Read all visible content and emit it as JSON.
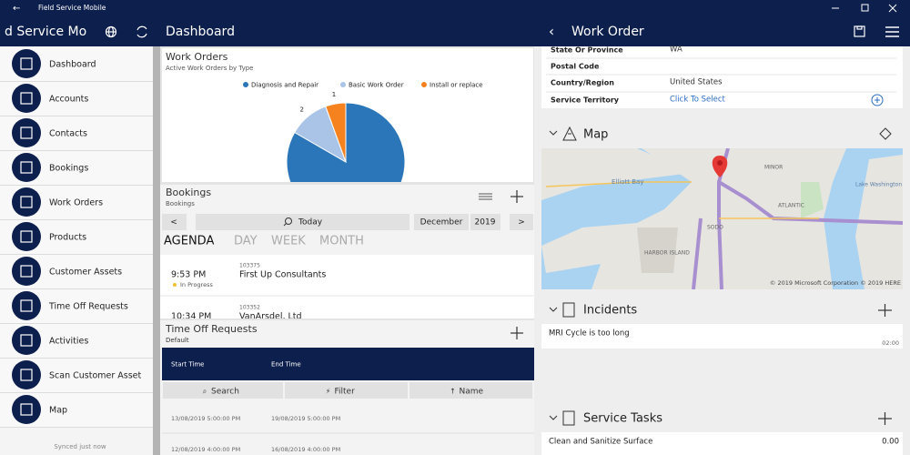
{
  "app": {
    "title": "Field Service Mobile",
    "header": "d Service Mo",
    "sync_status": "Synced just now"
  },
  "nav": [
    "Dashboard",
    "Accounts",
    "Contacts",
    "Bookings",
    "Work Orders",
    "Products",
    "Customer Assets",
    "Time Off Requests",
    "Activities",
    "Scan Customer Asset",
    "Map"
  ],
  "dashboard": {
    "title": "Dashboard",
    "work_orders": {
      "title": "Work Orders",
      "subtitle": "Active Work Orders by Type",
      "chart_data": {
        "type": "pie",
        "categories": [
          "Diagnosis and Repair",
          "Basic Work Order",
          "Install or replace"
        ],
        "values": [
          15,
          2,
          1
        ],
        "colors": [
          "#2b76b9",
          "#a9c4e6",
          "#f5821f"
        ]
      }
    },
    "bookings": {
      "title": "Bookings",
      "subtitle": "Bookings",
      "today": "Today",
      "month": "December",
      "year": "2019",
      "views": [
        "AGENDA",
        "DAY",
        "WEEK",
        "MONTH"
      ],
      "items": [
        {
          "time": "9:53 PM",
          "number": "103375",
          "name": "First Up Consultants",
          "status": "In Progress"
        },
        {
          "time": "10:34 PM",
          "number": "103352",
          "name": "VanArsdel, Ltd"
        }
      ]
    },
    "time_off": {
      "title": "Time Off Requests",
      "subtitle": "Default",
      "columns": [
        "Start Time",
        "End Time"
      ],
      "actions": [
        "Search",
        "Filter",
        "Name"
      ],
      "rows": [
        [
          "13/08/2019 5:00:00 PM",
          "19/08/2019 5:00:00 PM"
        ],
        [
          "12/08/2019 4:00:00 PM",
          "16/08/2019 4:00:00 PM"
        ]
      ]
    }
  },
  "work_order": {
    "title": "Work Order",
    "fields": [
      {
        "label": "State Or Province",
        "value": "WA"
      },
      {
        "label": "Postal Code"
      },
      {
        "label": "Country/Region",
        "value": "United States"
      },
      {
        "label": "Service Territory",
        "value": "Click To Select"
      }
    ],
    "map": {
      "title": "Map",
      "labels": [
        "Elliott Bay",
        "Lake Washington",
        "MINOR",
        "ATLANTIC",
        "SODO",
        "HARBOR ISLAND"
      ],
      "copyright": "© 2019 Microsoft Corporation © 2019 HERE"
    },
    "incidents": {
      "title": "Incidents",
      "items": [
        {
          "name": "MRI Cycle is too long",
          "duration": "02:00"
        }
      ]
    },
    "service_tasks": {
      "title": "Service Tasks",
      "items": [
        {
          "name": "Clean and Sanitize Surface",
          "value": "0.00"
        }
      ]
    }
  }
}
